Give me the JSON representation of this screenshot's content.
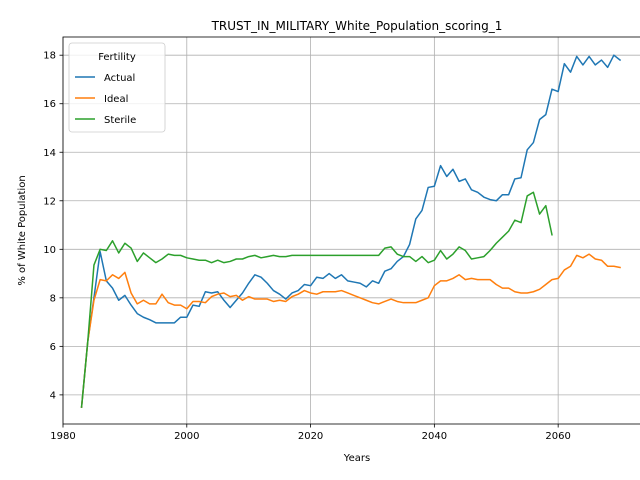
{
  "chart_data": {
    "type": "line",
    "title": "TRUST_IN_MILITARY_White_Population_scoring_1",
    "xlabel": "Years",
    "ylabel": "% of White Population",
    "xlim": [
      1980,
      2075
    ],
    "ylim": [
      2.8,
      18.75
    ],
    "xticks": [
      1980,
      2000,
      2020,
      2040,
      2060
    ],
    "yticks": [
      4,
      6,
      8,
      10,
      12,
      14,
      16,
      18
    ],
    "grid": true,
    "legend": {
      "title": "Fertility",
      "position": "top-left"
    },
    "series": [
      {
        "name": "Actual",
        "color": "#1f77b4",
        "x": [
          1983,
          1984,
          1985,
          1986,
          1987,
          1988,
          1989,
          1990,
          1991,
          1992,
          1993,
          1994,
          1995,
          1996,
          1997,
          1998,
          1999,
          2000,
          2001,
          2002,
          2003,
          2004,
          2005,
          2006,
          2007,
          2008,
          2009,
          2010,
          2011,
          2012,
          2013,
          2014,
          2015,
          2016,
          2017,
          2018,
          2019,
          2020,
          2021,
          2022,
          2023,
          2024,
          2025,
          2026,
          2027,
          2028,
          2029,
          2030,
          2031,
          2032,
          2033,
          2034,
          2035,
          2036,
          2037,
          2038,
          2039,
          2040,
          2041,
          2042,
          2043,
          2044,
          2045,
          2046,
          2047,
          2048,
          2049,
          2050,
          2051,
          2052,
          2053,
          2054,
          2055,
          2056,
          2057,
          2058,
          2059,
          2060,
          2061,
          2062,
          2063,
          2064,
          2065,
          2066,
          2067,
          2068,
          2069,
          2070
        ],
        "values": [
          3.5,
          6.2,
          8.0,
          9.9,
          8.7,
          8.4,
          7.9,
          8.1,
          7.7,
          7.35,
          7.2,
          7.1,
          6.97,
          6.97,
          6.97,
          6.97,
          7.2,
          7.2,
          7.7,
          7.65,
          8.25,
          8.2,
          8.25,
          7.9,
          7.6,
          7.9,
          8.2,
          8.6,
          8.95,
          8.85,
          8.6,
          8.3,
          8.15,
          7.95,
          8.2,
          8.3,
          8.55,
          8.5,
          8.85,
          8.8,
          9.0,
          8.8,
          8.95,
          8.7,
          8.65,
          8.6,
          8.45,
          8.7,
          8.6,
          9.1,
          9.2,
          9.5,
          9.7,
          10.2,
          11.25,
          11.6,
          12.55,
          12.6,
          13.45,
          13.0,
          13.3,
          12.8,
          12.9,
          12.45,
          12.35,
          12.15,
          12.05,
          12.0,
          12.25,
          12.25,
          12.9,
          12.95,
          14.1,
          14.4,
          15.35,
          15.55,
          16.6,
          16.5,
          17.65,
          17.3,
          17.95,
          17.6,
          17.95,
          17.6,
          17.8,
          17.5,
          18.0,
          17.8
        ]
      },
      {
        "name": "Ideal",
        "color": "#ff7f0e",
        "x": [
          1983,
          1984,
          1985,
          1986,
          1987,
          1988,
          1989,
          1990,
          1991,
          1992,
          1993,
          1994,
          1995,
          1996,
          1997,
          1998,
          1999,
          2000,
          2001,
          2002,
          2003,
          2004,
          2005,
          2006,
          2007,
          2008,
          2009,
          2010,
          2011,
          2012,
          2013,
          2014,
          2015,
          2016,
          2017,
          2018,
          2019,
          2020,
          2021,
          2022,
          2023,
          2024,
          2025,
          2026,
          2027,
          2028,
          2029,
          2030,
          2031,
          2032,
          2033,
          2034,
          2035,
          2036,
          2037,
          2038,
          2039,
          2040,
          2041,
          2042,
          2043,
          2044,
          2045,
          2046,
          2047,
          2048,
          2049,
          2050,
          2051,
          2052,
          2053,
          2054,
          2055,
          2056,
          2057,
          2058,
          2059,
          2060,
          2061,
          2062,
          2063,
          2064,
          2065,
          2066,
          2067,
          2068,
          2069,
          2070
        ],
        "values": [
          3.5,
          6.2,
          7.9,
          8.75,
          8.7,
          8.95,
          8.8,
          9.05,
          8.2,
          7.75,
          7.9,
          7.75,
          7.75,
          8.15,
          7.8,
          7.7,
          7.7,
          7.55,
          7.85,
          7.85,
          7.8,
          8.05,
          8.15,
          8.2,
          8.05,
          8.1,
          7.9,
          8.05,
          7.95,
          7.95,
          7.95,
          7.85,
          7.9,
          7.85,
          8.05,
          8.15,
          8.3,
          8.2,
          8.15,
          8.25,
          8.25,
          8.25,
          8.3,
          8.2,
          8.1,
          8.0,
          7.9,
          7.8,
          7.75,
          7.85,
          7.95,
          7.85,
          7.8,
          7.8,
          7.8,
          7.9,
          8.0,
          8.5,
          8.7,
          8.7,
          8.8,
          8.95,
          8.75,
          8.8,
          8.75,
          8.75,
          8.75,
          8.55,
          8.4,
          8.4,
          8.25,
          8.2,
          8.2,
          8.25,
          8.35,
          8.55,
          8.75,
          8.8,
          9.15,
          9.3,
          9.75,
          9.65,
          9.8,
          9.6,
          9.55,
          9.3,
          9.3,
          9.25
        ]
      },
      {
        "name": "Sterile",
        "color": "#2ca02c",
        "x": [
          1983,
          1984,
          1985,
          1986,
          1987,
          1988,
          1989,
          1990,
          1991,
          1992,
          1993,
          1994,
          1995,
          1996,
          1997,
          1998,
          1999,
          2000,
          2001,
          2002,
          2003,
          2004,
          2005,
          2006,
          2007,
          2008,
          2009,
          2010,
          2011,
          2012,
          2013,
          2014,
          2015,
          2016,
          2017,
          2018,
          2019,
          2020,
          2021,
          2022,
          2023,
          2024,
          2025,
          2026,
          2027,
          2028,
          2029,
          2030,
          2031,
          2032,
          2033,
          2034,
          2035,
          2036,
          2037,
          2038,
          2039,
          2040,
          2041,
          2042,
          2043,
          2044,
          2045,
          2046,
          2047,
          2048,
          2049,
          2050,
          2051,
          2052,
          2053,
          2054,
          2055,
          2056,
          2057,
          2058,
          2059
        ],
        "values": [
          3.5,
          6.2,
          9.35,
          10.0,
          9.95,
          10.35,
          9.85,
          10.25,
          10.05,
          9.5,
          9.85,
          9.65,
          9.45,
          9.6,
          9.8,
          9.75,
          9.75,
          9.65,
          9.6,
          9.55,
          9.55,
          9.45,
          9.55,
          9.45,
          9.5,
          9.6,
          9.6,
          9.7,
          9.75,
          9.65,
          9.7,
          9.75,
          9.7,
          9.7,
          9.75,
          9.75,
          9.75,
          9.75,
          9.75,
          9.75,
          9.75,
          9.75,
          9.75,
          9.75,
          9.75,
          9.75,
          9.75,
          9.75,
          9.75,
          10.05,
          10.1,
          9.8,
          9.7,
          9.7,
          9.5,
          9.7,
          9.45,
          9.55,
          9.95,
          9.6,
          9.8,
          10.1,
          9.95,
          9.6,
          9.65,
          9.7,
          9.95,
          10.25,
          10.5,
          10.75,
          11.2,
          11.1,
          12.2,
          12.35,
          11.45,
          11.8,
          10.6
        ]
      }
    ]
  }
}
